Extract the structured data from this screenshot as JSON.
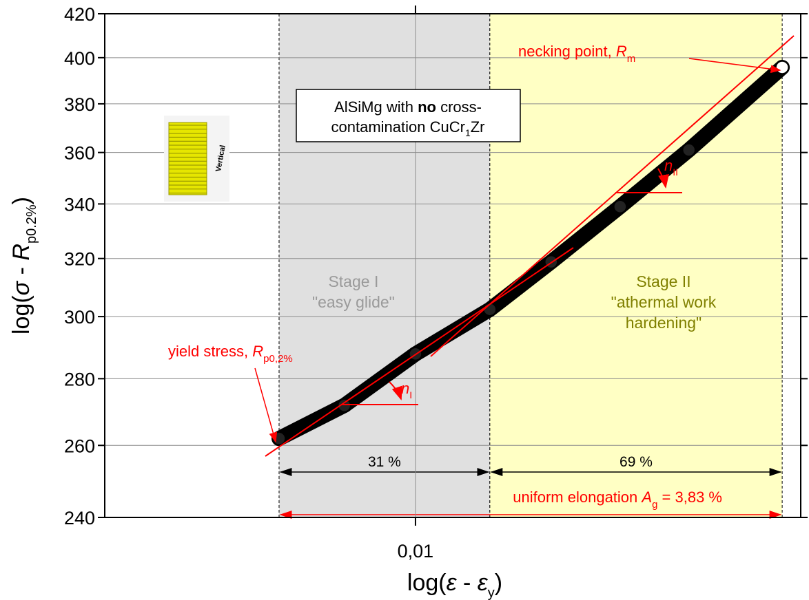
{
  "chart_data": {
    "type": "scatter",
    "x_label": [
      "log(",
      "ε",
      " - ",
      "ε",
      "y",
      ")"
    ],
    "y_label": [
      "log(",
      "σ",
      " - ",
      "R",
      "p0.2%",
      ")"
    ],
    "x": [
      0.00579,
      0.00752,
      0.01,
      0.01347,
      0.01722,
      0.0227,
      0.0299,
      0.04345
    ],
    "series": [
      {
        "color": "#000000",
        "values": [
          262,
          271.8,
          287.8,
          302.4,
          318.8,
          339,
          361,
          395.7
        ]
      }
    ],
    "xlim": [
      0.00288,
      0.0468
    ],
    "ylim": [
      240,
      420
    ],
    "xscale": "log",
    "yscale": "log",
    "xticks": [
      {
        "value": 0.01,
        "label": "0,01"
      }
    ],
    "yticks": [
      240,
      260,
      280,
      300,
      320,
      340,
      360,
      380,
      400,
      420
    ],
    "grid": true,
    "regions": [
      {
        "x": [
          0.00579,
          0.01347
        ],
        "color": "#e0e0e0",
        "labels": [
          "Stage I",
          "\"easy glide\""
        ],
        "label_color": "#9a9a9a",
        "share": "31 %"
      },
      {
        "x": [
          0.01347,
          0.04345
        ],
        "color": "#ffffc4",
        "labels": [
          "Stage II",
          "\"athermal work",
          "hardening\""
        ],
        "label_color": "#808000",
        "share": "69 %"
      }
    ],
    "box_text": [
      "AlSiMg with ",
      "no",
      " cross-",
      "contamination CuCr",
      "1",
      "Zr"
    ],
    "inset_label": "Vertical",
    "annotations": {
      "necking": [
        "necking point, ",
        "R",
        "m"
      ],
      "yield": [
        "yield stress, ",
        "R",
        "p0,2%"
      ],
      "n1": [
        "n",
        "I"
      ],
      "n2": [
        "n",
        "II"
      ],
      "elongation": [
        "uniform elongation ",
        "A",
        "g",
        " = 3,83 %"
      ]
    }
  }
}
